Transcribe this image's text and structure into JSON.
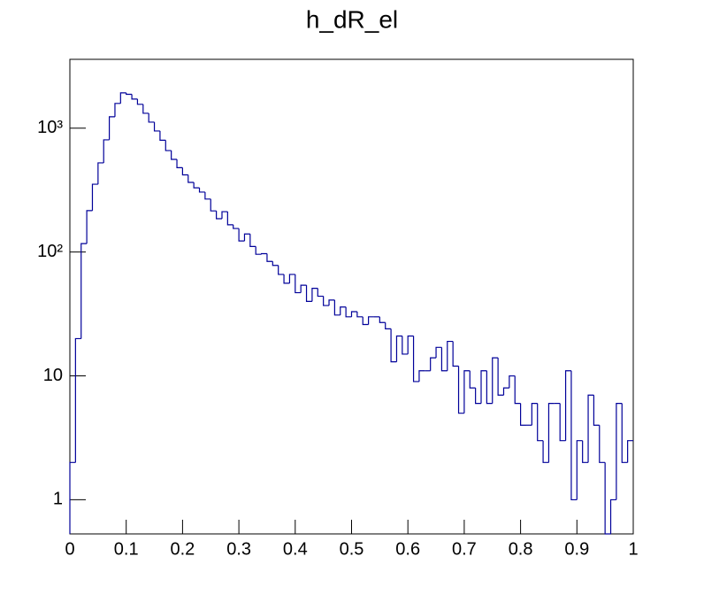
{
  "chart_data": {
    "type": "histogram",
    "title": "h_dR_el",
    "bins": [
      0,
      0.01,
      0.02,
      0.03,
      0.04,
      0.05,
      0.06,
      0.07,
      0.08,
      0.09,
      0.1,
      0.11,
      0.12,
      0.13,
      0.14,
      0.15,
      0.16,
      0.17,
      0.18,
      0.19,
      0.2,
      0.21,
      0.22,
      0.23,
      0.24,
      0.25,
      0.26,
      0.27,
      0.28,
      0.29,
      0.3,
      0.31,
      0.32,
      0.33,
      0.34,
      0.35,
      0.36,
      0.37,
      0.38,
      0.39,
      0.4,
      0.41,
      0.42,
      0.43,
      0.44,
      0.45,
      0.46,
      0.47,
      0.48,
      0.49,
      0.5,
      0.51,
      0.52,
      0.53,
      0.54,
      0.55,
      0.56,
      0.57,
      0.58,
      0.59,
      0.6,
      0.61,
      0.62,
      0.63,
      0.64,
      0.65,
      0.66,
      0.67,
      0.68,
      0.69,
      0.7,
      0.71,
      0.72,
      0.73,
      0.74,
      0.75,
      0.76,
      0.77,
      0.78,
      0.79,
      0.8,
      0.81,
      0.82,
      0.83,
      0.84,
      0.85,
      0.86,
      0.87,
      0.88,
      0.89,
      0.9,
      0.91,
      0.92,
      0.93,
      0.94,
      0.95,
      0.96,
      0.97,
      0.98,
      0.99,
      1
    ],
    "counts": [
      2,
      20,
      117,
      216,
      353,
      525,
      806,
      1237,
      1585,
      1930,
      1880,
      1720,
      1560,
      1320,
      1120,
      950,
      800,
      660,
      560,
      480,
      420,
      365,
      330,
      305,
      268,
      215,
      186,
      212,
      166,
      155,
      123,
      140,
      111,
      96,
      97,
      84,
      78,
      66,
      56,
      66,
      47,
      54,
      40,
      51,
      44,
      37,
      41,
      31,
      36,
      30,
      33,
      30,
      26,
      30,
      30,
      27,
      24,
      13,
      21,
      15,
      21,
      9,
      11,
      11,
      14,
      17,
      11,
      19,
      12,
      5,
      11,
      8,
      6,
      11,
      6,
      14,
      7,
      8,
      10,
      6,
      4,
      4,
      6,
      3,
      2,
      6,
      6,
      3,
      11,
      1,
      3,
      2,
      7,
      4,
      2,
      0,
      1,
      6,
      2,
      3
    ],
    "color": "#000099",
    "xlim": [
      0,
      1
    ],
    "xticks": [
      0,
      0.1,
      0.2,
      0.3,
      0.4,
      0.5,
      0.6,
      0.7,
      0.8,
      0.9,
      1
    ],
    "ylim": [
      0.53,
      3600
    ],
    "yticks": [
      1,
      10,
      {
        "value": 100,
        "label": "10²"
      },
      {
        "value": 1000,
        "label": "10³"
      }
    ],
    "log_y": true,
    "grid": false
  }
}
